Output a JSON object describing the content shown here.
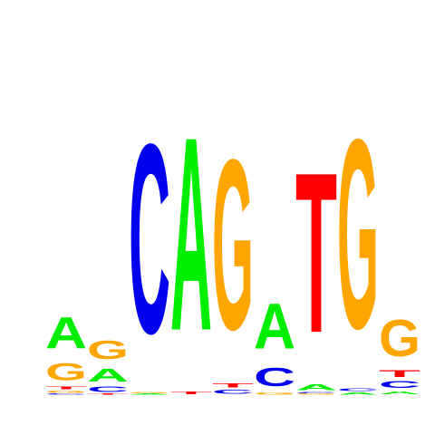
{
  "colors": {
    "A": "#00ee00",
    "C": "#0000ee",
    "G": "#ffa500",
    "T": "#ff0000"
  },
  "motif": {
    "bits_max": 2,
    "positions": [
      [
        {
          "base": "C",
          "bits": 0.01
        },
        {
          "base": "G",
          "bits": 0.02
        },
        {
          "base": "T",
          "bits": 0.03
        },
        {
          "base": "G",
          "bits": 0.17
        },
        {
          "base": "A",
          "bits": 0.31
        }
      ],
      [
        {
          "base": "T",
          "bits": 0.01
        },
        {
          "base": "C",
          "bits": 0.05
        },
        {
          "base": "A",
          "bits": 0.13
        },
        {
          "base": "G",
          "bits": 0.18
        }
      ],
      [
        {
          "base": "A",
          "bits": 0.01
        },
        {
          "base": "G",
          "bits": 0.01
        },
        {
          "base": "C",
          "bits": 1.88
        }
      ],
      [
        {
          "base": "T",
          "bits": 0.03
        },
        {
          "base": "A",
          "bits": 1.92
        }
      ],
      [
        {
          "base": "C",
          "bits": 0.04
        },
        {
          "base": "T",
          "bits": 0.04
        },
        {
          "base": "G",
          "bits": 1.69
        }
      ],
      [
        {
          "base": "G",
          "bits": 0.02
        },
        {
          "base": "C",
          "bits": 0.18
        },
        {
          "base": "A",
          "bits": 0.45
        }
      ],
      [
        {
          "base": "G",
          "bits": 0.01
        },
        {
          "base": "C",
          "bits": 0.01
        },
        {
          "base": "A",
          "bits": 0.06
        },
        {
          "base": "T",
          "bits": 1.59
        }
      ],
      [
        {
          "base": "A",
          "bits": 0.02
        },
        {
          "base": "C",
          "bits": 0.03
        },
        {
          "base": "G",
          "bits": 1.88
        }
      ],
      [
        {
          "base": "A",
          "bits": 0.03
        },
        {
          "base": "C",
          "bits": 0.07
        },
        {
          "base": "T",
          "bits": 0.07
        },
        {
          "base": "G",
          "bits": 0.36
        }
      ]
    ]
  }
}
